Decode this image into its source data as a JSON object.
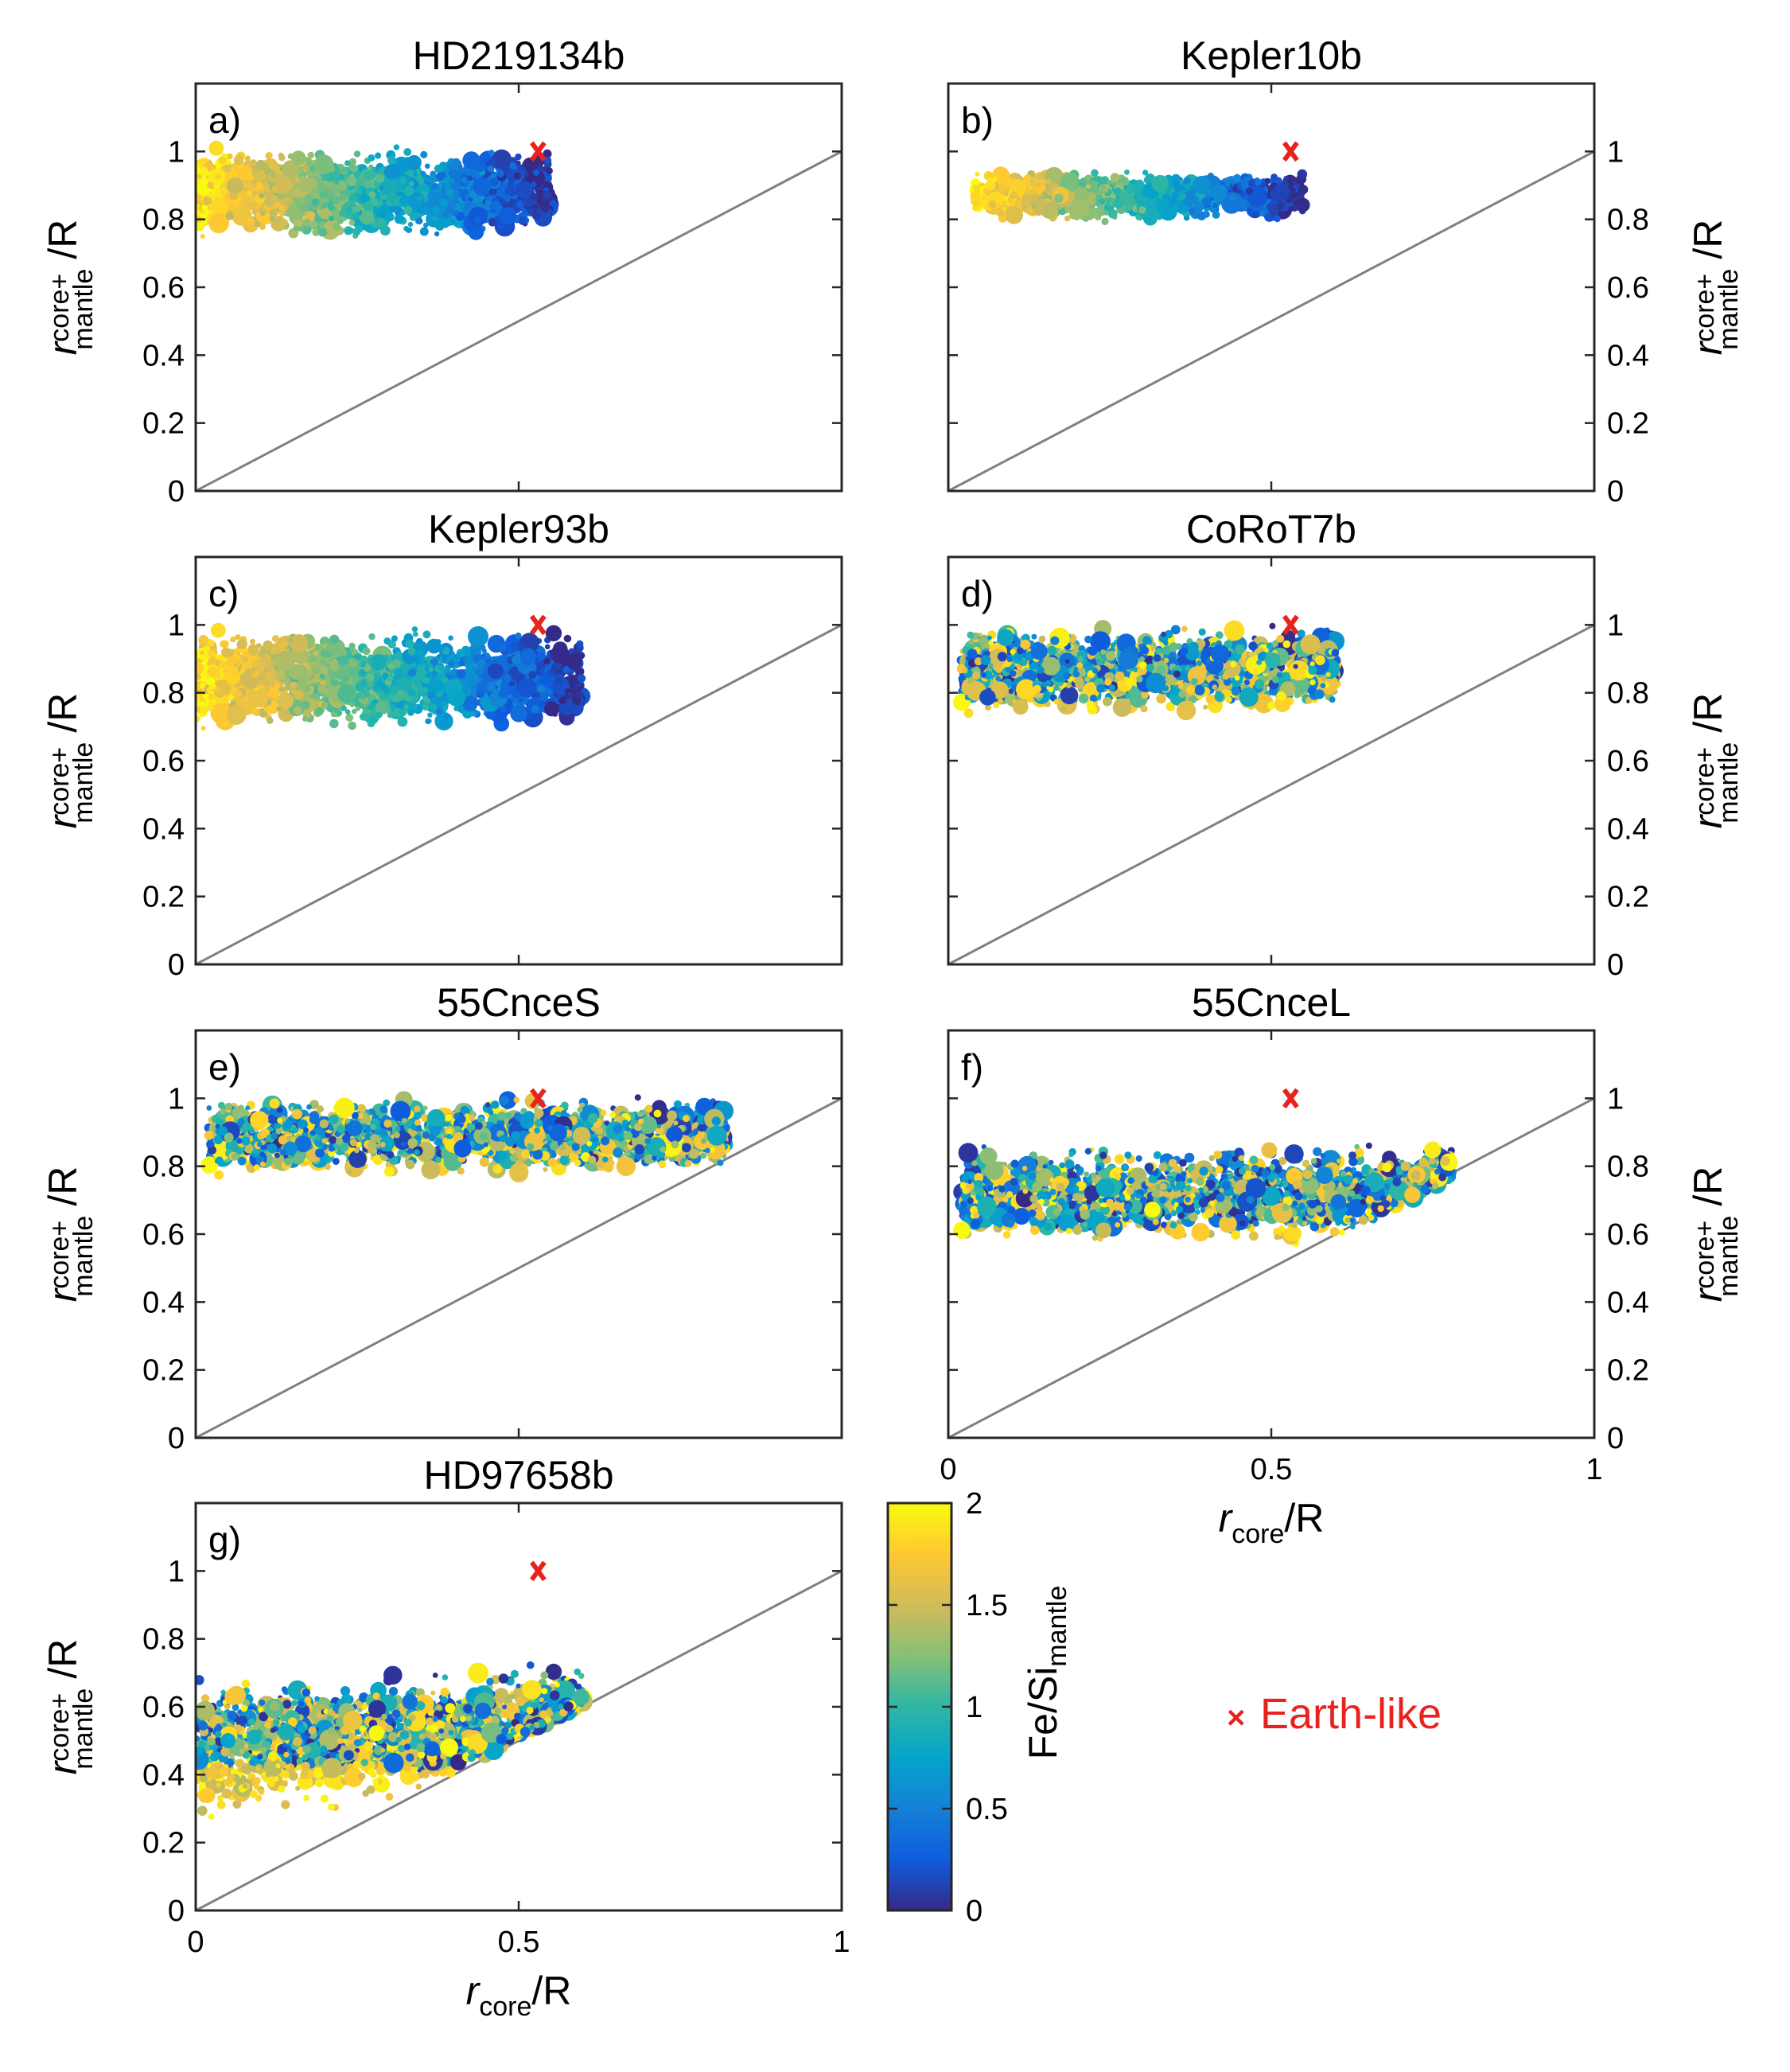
{
  "chart_data": [
    {
      "id": "a",
      "type": "scatter",
      "title": "HD219134b",
      "panel_label": "a)",
      "ylabel_side": "left",
      "show_xticks": false,
      "ylabel": {
        "r": "r",
        "sub_top": "core+",
        "sub_bottom": "mantle",
        "tail": "/R"
      },
      "xlim": [
        0,
        1
      ],
      "ylim": [
        0,
        1.2
      ],
      "yticks": [
        "0",
        "0.2",
        "0.4",
        "0.6",
        "0.8",
        "1"
      ],
      "xticks": [
        "0",
        "0.5",
        "1"
      ],
      "earth_like": {
        "x": 0.53,
        "y": 1.0
      },
      "cloud": {
        "x_range": [
          0.0,
          0.55
        ],
        "y_center": 0.88,
        "y_spread": 0.09,
        "color_rule": "dark_right",
        "n": 1600
      }
    },
    {
      "id": "b",
      "type": "scatter",
      "title": "Kepler10b",
      "panel_label": "b)",
      "ylabel_side": "right",
      "show_xticks": false,
      "ylabel": {
        "r": "r",
        "sub_top": "core+",
        "sub_bottom": "mantle",
        "tail": "/R"
      },
      "xlim": [
        0,
        1
      ],
      "ylim": [
        0,
        1.2
      ],
      "yticks": [
        "0",
        "0.2",
        "0.4",
        "0.6",
        "0.8",
        "1"
      ],
      "xticks": [
        "0",
        "0.5",
        "1"
      ],
      "earth_like": {
        "x": 0.53,
        "y": 1.0
      },
      "cloud": {
        "x_range": [
          0.04,
          0.55
        ],
        "y_center": 0.87,
        "y_spread": 0.05,
        "color_rule": "dark_right",
        "n": 900
      }
    },
    {
      "id": "c",
      "type": "scatter",
      "title": "Kepler93b",
      "panel_label": "c)",
      "ylabel_side": "left",
      "show_xticks": false,
      "ylabel": {
        "r": "r",
        "sub_top": "core+",
        "sub_bottom": "mantle",
        "tail": "/R"
      },
      "xlim": [
        0,
        1
      ],
      "ylim": [
        0,
        1.2
      ],
      "yticks": [
        "0",
        "0.2",
        "0.4",
        "0.6",
        "0.8",
        "1"
      ],
      "xticks": [
        "0",
        "0.5",
        "1"
      ],
      "earth_like": {
        "x": 0.53,
        "y": 1.0
      },
      "cloud": {
        "x_range": [
          0.0,
          0.6
        ],
        "y_center": 0.84,
        "y_spread": 0.1,
        "color_rule": "dark_right",
        "n": 1600
      }
    },
    {
      "id": "d",
      "type": "scatter",
      "title": "CoRoT7b",
      "panel_label": "d)",
      "ylabel_side": "right",
      "show_xticks": false,
      "ylabel": {
        "r": "r",
        "sub_top": "core+",
        "sub_bottom": "mantle",
        "tail": "/R"
      },
      "xlim": [
        0,
        1
      ],
      "ylim": [
        0,
        1.2
      ],
      "yticks": [
        "0",
        "0.2",
        "0.4",
        "0.6",
        "0.8",
        "1"
      ],
      "xticks": [
        "0",
        "0.5",
        "1"
      ],
      "earth_like": {
        "x": 0.53,
        "y": 1.0
      },
      "cloud": {
        "x_range": [
          0.02,
          0.6
        ],
        "y_center": 0.87,
        "y_spread": 0.09,
        "color_rule": "mixed",
        "n": 1500
      }
    },
    {
      "id": "e",
      "type": "scatter",
      "title": "55CnceS",
      "panel_label": "e)",
      "ylabel_side": "left",
      "show_xticks": false,
      "ylabel": {
        "r": "r",
        "sub_top": "core+",
        "sub_bottom": "mantle",
        "tail": "/R"
      },
      "xlim": [
        0,
        1
      ],
      "ylim": [
        0,
        1.2
      ],
      "yticks": [
        "0",
        "0.2",
        "0.4",
        "0.6",
        "0.8",
        "1"
      ],
      "xticks": [
        "0",
        "0.5",
        "1"
      ],
      "earth_like": {
        "x": 0.53,
        "y": 1.0
      },
      "cloud": {
        "x_range": [
          0.02,
          0.82
        ],
        "y_center": 0.89,
        "y_spread": 0.08,
        "color_rule": "mixed",
        "n": 1700
      }
    },
    {
      "id": "f",
      "type": "scatter",
      "title": "55CnceL",
      "panel_label": "f)",
      "ylabel_side": "right",
      "show_xticks": true,
      "ylabel": {
        "r": "r",
        "sub_top": "core+",
        "sub_bottom": "mantle",
        "tail": "/R"
      },
      "xlabel": {
        "r": "r",
        "sub": "core",
        "tail": "/R"
      },
      "xlim": [
        0,
        1
      ],
      "ylim": [
        0,
        1.2
      ],
      "yticks": [
        "0",
        "0.2",
        "0.4",
        "0.6",
        "0.8",
        "1"
      ],
      "xticks": [
        "0",
        "0.5",
        "1"
      ],
      "earth_like": {
        "x": 0.53,
        "y": 1.0
      },
      "cloud": {
        "x_range": [
          0.02,
          0.78
        ],
        "y_center": 0.72,
        "y_spread": 0.1,
        "color_rule": "mixed",
        "n": 1700
      }
    },
    {
      "id": "g",
      "type": "scatter",
      "title": "HD97658b",
      "panel_label": "g)",
      "ylabel_side": "left",
      "show_xticks": true,
      "ylabel": {
        "r": "r",
        "sub_top": "core+",
        "sub_bottom": "mantle",
        "tail": "/R"
      },
      "xlabel": {
        "r": "r",
        "sub": "core",
        "tail": "/R"
      },
      "xlim": [
        0,
        1
      ],
      "ylim": [
        0,
        1.2
      ],
      "yticks": [
        "0",
        "0.2",
        "0.4",
        "0.6",
        "0.8",
        "1"
      ],
      "xticks": [
        "0",
        "0.5",
        "1"
      ],
      "earth_like": {
        "x": 0.53,
        "y": 1.0
      },
      "cloud": {
        "x_range": [
          0.0,
          0.6
        ],
        "y_center": 0.55,
        "y_spread": 0.12,
        "color_rule": "mixed",
        "n": 1700
      }
    }
  ],
  "colorbar": {
    "label_main": "Fe/Si",
    "label_sub": "mantle",
    "range": [
      0,
      2
    ],
    "ticks": [
      "0",
      "0.5",
      "1",
      "1.5",
      "2"
    ],
    "colormap": [
      "#352a87",
      "#0f5cdd",
      "#1481d6",
      "#06a4ca",
      "#2eb7a4",
      "#87bf77",
      "#d1bb59",
      "#fec832",
      "#f9fb0e"
    ]
  },
  "legend": {
    "marker": "x",
    "label": "Earth-like",
    "color": "#e8231e"
  },
  "diagonal_color": "#808080"
}
